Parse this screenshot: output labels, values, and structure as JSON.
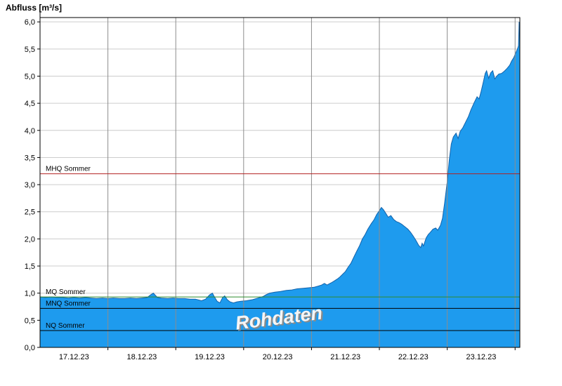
{
  "title": "Abfluss [m³/s]",
  "chart_data": {
    "type": "area",
    "title": "Abfluss [m³/s]",
    "ylabel": "Abfluss [m³/s]",
    "watermark": "Rohdaten",
    "ylim": [
      0,
      6.08
    ],
    "xlim_days": [
      0,
      7.07
    ],
    "grid": true,
    "x_tick_labels": [
      "17.12.23",
      "18.12.23",
      "19.12.23",
      "20.12.23",
      "21.12.23",
      "22.12.23",
      "23.12.23"
    ],
    "y_ticks": [
      {
        "value": 0.0,
        "label": "0,0"
      },
      {
        "value": 0.5,
        "label": "0,5"
      },
      {
        "value": 1.0,
        "label": "1,0"
      },
      {
        "value": 1.5,
        "label": "1,5"
      },
      {
        "value": 2.0,
        "label": "2,0"
      },
      {
        "value": 2.5,
        "label": "2,5"
      },
      {
        "value": 3.0,
        "label": "3,0"
      },
      {
        "value": 3.5,
        "label": "3,5"
      },
      {
        "value": 4.0,
        "label": "4,0"
      },
      {
        "value": 4.5,
        "label": "4,5"
      },
      {
        "value": 5.0,
        "label": "5,0"
      },
      {
        "value": 5.5,
        "label": "5,5"
      },
      {
        "value": 6.0,
        "label": "6,0"
      }
    ],
    "reference_lines": [
      {
        "name": "MHQ Sommer",
        "value": 3.2,
        "color": "#b22222"
      },
      {
        "name": "MQ Sommer",
        "value": 0.93,
        "color": "#2e8b2e"
      },
      {
        "name": "MNQ Sommer",
        "value": 0.72,
        "color": "#000000"
      },
      {
        "name": "NQ Sommer",
        "value": 0.31,
        "color": "#000000"
      }
    ],
    "colors": {
      "area_fill": "#1e9bee",
      "area_stroke": "#1362aa",
      "grid_h": "#cccccc",
      "grid_v": "#8c8c8c",
      "axis": "#000000",
      "background": "#ffffff",
      "watermark_fill": "#f5f5f5",
      "watermark_shadow": "#8a8a8a"
    },
    "series": [
      {
        "name": "Abfluss Rohdaten",
        "unit": "m³/s",
        "points": [
          [
            0.0,
            0.93
          ],
          [
            0.08,
            0.92
          ],
          [
            0.17,
            0.93
          ],
          [
            0.25,
            0.92
          ],
          [
            0.33,
            0.92
          ],
          [
            0.42,
            0.91
          ],
          [
            0.5,
            0.92
          ],
          [
            0.58,
            0.91
          ],
          [
            0.67,
            0.92
          ],
          [
            0.75,
            0.91
          ],
          [
            0.83,
            0.9
          ],
          [
            0.92,
            0.91
          ],
          [
            1.0,
            0.9
          ],
          [
            1.08,
            0.91
          ],
          [
            1.17,
            0.9
          ],
          [
            1.25,
            0.9
          ],
          [
            1.33,
            0.91
          ],
          [
            1.42,
            0.9
          ],
          [
            1.5,
            0.91
          ],
          [
            1.58,
            0.92
          ],
          [
            1.63,
            0.97
          ],
          [
            1.67,
            1.0
          ],
          [
            1.7,
            0.96
          ],
          [
            1.73,
            0.92
          ],
          [
            1.79,
            0.91
          ],
          [
            1.88,
            0.9
          ],
          [
            1.96,
            0.91
          ],
          [
            2.04,
            0.9
          ],
          [
            2.13,
            0.9
          ],
          [
            2.21,
            0.89
          ],
          [
            2.29,
            0.89
          ],
          [
            2.38,
            0.86
          ],
          [
            2.44,
            0.89
          ],
          [
            2.5,
            0.97
          ],
          [
            2.54,
            1.0
          ],
          [
            2.57,
            0.93
          ],
          [
            2.61,
            0.85
          ],
          [
            2.65,
            0.82
          ],
          [
            2.69,
            0.92
          ],
          [
            2.72,
            0.95
          ],
          [
            2.76,
            0.88
          ],
          [
            2.8,
            0.84
          ],
          [
            2.85,
            0.82
          ],
          [
            2.9,
            0.84
          ],
          [
            2.96,
            0.85
          ],
          [
            3.04,
            0.86
          ],
          [
            3.13,
            0.88
          ],
          [
            3.21,
            0.91
          ],
          [
            3.29,
            0.94
          ],
          [
            3.33,
            0.97
          ],
          [
            3.38,
            1.0
          ],
          [
            3.46,
            1.02
          ],
          [
            3.54,
            1.03
          ],
          [
            3.63,
            1.05
          ],
          [
            3.71,
            1.06
          ],
          [
            3.79,
            1.08
          ],
          [
            3.88,
            1.09
          ],
          [
            3.96,
            1.1
          ],
          [
            4.04,
            1.11
          ],
          [
            4.1,
            1.13
          ],
          [
            4.15,
            1.15
          ],
          [
            4.19,
            1.18
          ],
          [
            4.23,
            1.15
          ],
          [
            4.29,
            1.19
          ],
          [
            4.33,
            1.22
          ],
          [
            4.38,
            1.26
          ],
          [
            4.42,
            1.3
          ],
          [
            4.46,
            1.35
          ],
          [
            4.5,
            1.4
          ],
          [
            4.54,
            1.48
          ],
          [
            4.58,
            1.55
          ],
          [
            4.63,
            1.68
          ],
          [
            4.67,
            1.78
          ],
          [
            4.71,
            1.88
          ],
          [
            4.75,
            2.0
          ],
          [
            4.79,
            2.08
          ],
          [
            4.83,
            2.18
          ],
          [
            4.88,
            2.28
          ],
          [
            4.92,
            2.35
          ],
          [
            4.96,
            2.45
          ],
          [
            5.0,
            2.52
          ],
          [
            5.03,
            2.58
          ],
          [
            5.06,
            2.54
          ],
          [
            5.1,
            2.46
          ],
          [
            5.13,
            2.4
          ],
          [
            5.17,
            2.43
          ],
          [
            5.21,
            2.36
          ],
          [
            5.25,
            2.32
          ],
          [
            5.29,
            2.3
          ],
          [
            5.33,
            2.27
          ],
          [
            5.38,
            2.22
          ],
          [
            5.42,
            2.18
          ],
          [
            5.46,
            2.12
          ],
          [
            5.5,
            2.05
          ],
          [
            5.54,
            1.97
          ],
          [
            5.58,
            1.88
          ],
          [
            5.61,
            1.84
          ],
          [
            5.63,
            1.92
          ],
          [
            5.65,
            1.87
          ],
          [
            5.69,
            2.02
          ],
          [
            5.72,
            2.08
          ],
          [
            5.75,
            2.12
          ],
          [
            5.79,
            2.18
          ],
          [
            5.83,
            2.2
          ],
          [
            5.86,
            2.16
          ],
          [
            5.9,
            2.25
          ],
          [
            5.93,
            2.38
          ],
          [
            5.96,
            2.65
          ],
          [
            6.0,
            3.05
          ],
          [
            6.03,
            3.45
          ],
          [
            6.06,
            3.75
          ],
          [
            6.09,
            3.88
          ],
          [
            6.13,
            3.95
          ],
          [
            6.16,
            3.85
          ],
          [
            6.19,
            3.98
          ],
          [
            6.23,
            4.05
          ],
          [
            6.27,
            4.15
          ],
          [
            6.31,
            4.25
          ],
          [
            6.35,
            4.38
          ],
          [
            6.4,
            4.52
          ],
          [
            6.44,
            4.62
          ],
          [
            6.47,
            4.58
          ],
          [
            6.5,
            4.72
          ],
          [
            6.53,
            4.88
          ],
          [
            6.56,
            5.05
          ],
          [
            6.58,
            5.1
          ],
          [
            6.61,
            4.96
          ],
          [
            6.64,
            5.06
          ],
          [
            6.67,
            5.1
          ],
          [
            6.7,
            4.95
          ],
          [
            6.73,
            5.0
          ],
          [
            6.76,
            5.04
          ],
          [
            6.8,
            5.05
          ],
          [
            6.84,
            5.09
          ],
          [
            6.88,
            5.14
          ],
          [
            6.92,
            5.2
          ],
          [
            6.95,
            5.28
          ],
          [
            6.98,
            5.34
          ],
          [
            7.0,
            5.4
          ],
          [
            7.02,
            5.46
          ],
          [
            7.04,
            5.52
          ],
          [
            7.05,
            5.56
          ],
          [
            7.06,
            6.0
          ],
          [
            7.07,
            5.62
          ]
        ]
      }
    ]
  }
}
